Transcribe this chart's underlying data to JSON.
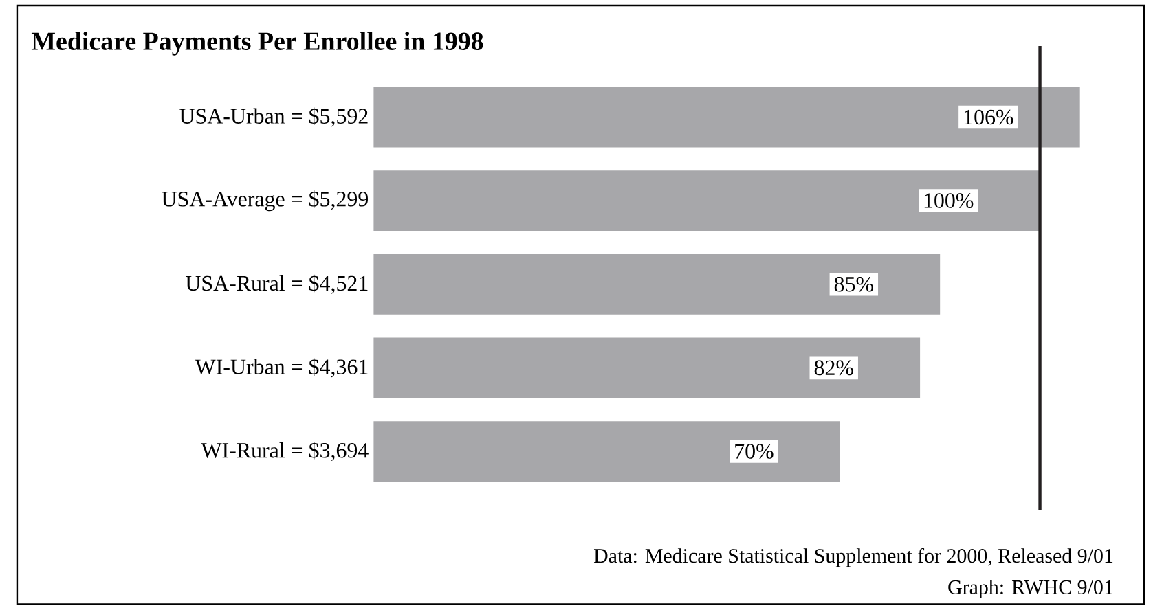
{
  "chart_data": {
    "type": "bar",
    "orientation": "horizontal",
    "title": "Medicare Payments Per Enrollee in 1998",
    "categories": [
      "USA-Urban = $5,592",
      "USA-Average = $5,299",
      "USA-Rural = $4,521",
      "WI-Urban = $4,361",
      "WI-Rural = $3,694"
    ],
    "values": [
      106,
      100,
      85,
      82,
      70
    ],
    "value_labels": [
      "106%",
      "100%",
      "85%",
      "82%",
      "70%"
    ],
    "color": "#a7a7aa",
    "ref_lines": [
      {
        "axis": "x",
        "value": 100,
        "color": "#231f20"
      }
    ],
    "annotations": [
      "Data: Medicare Statistical Supplement for 2000, Released 9/01",
      "Graph: RWHC 9/01"
    ]
  }
}
